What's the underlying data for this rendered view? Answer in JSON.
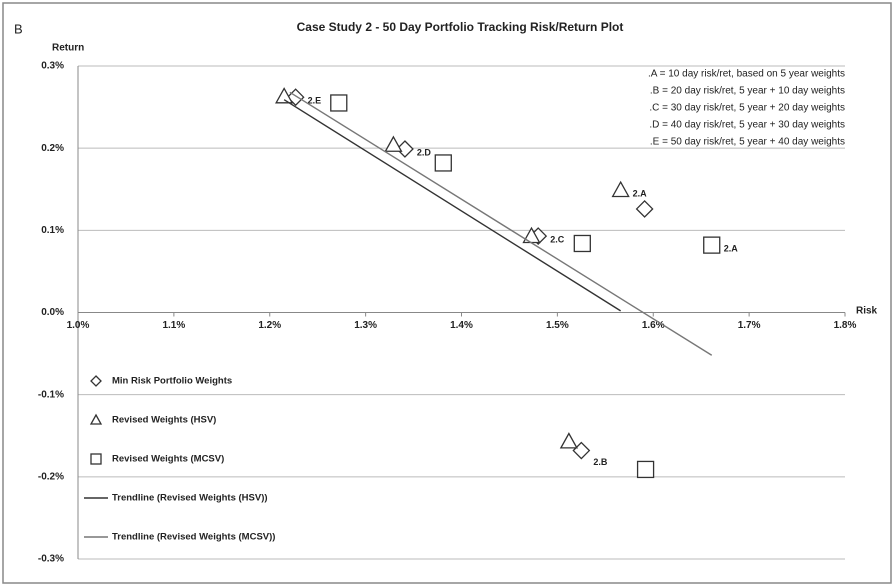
{
  "chart_data": {
    "type": "scatter",
    "panel_label": "B",
    "title": "Case Study 2 - 50 Day Portfolio Tracking  Risk/Return Plot",
    "y_label": "Return",
    "x_label": "Risk",
    "xlim": [
      1.0,
      1.8
    ],
    "ylim": [
      -0.3,
      0.3
    ],
    "xticks": [
      {
        "value": 1.0,
        "label": "1.0%"
      },
      {
        "value": 1.1,
        "label": "1.1%"
      },
      {
        "value": 1.2,
        "label": "1.2%"
      },
      {
        "value": 1.3,
        "label": "1.3%"
      },
      {
        "value": 1.4,
        "label": "1.4%"
      },
      {
        "value": 1.5,
        "label": "1.5%"
      },
      {
        "value": 1.6,
        "label": "1.6%"
      },
      {
        "value": 1.7,
        "label": "1.7%"
      },
      {
        "value": 1.8,
        "label": "1.8%"
      }
    ],
    "yticks": [
      {
        "value": -0.3,
        "label": "-0.3%"
      },
      {
        "value": -0.2,
        "label": "-0.2%"
      },
      {
        "value": -0.1,
        "label": "-0.1%"
      },
      {
        "value": 0.0,
        "label": "0.0%"
      },
      {
        "value": 0.1,
        "label": "0.1%"
      },
      {
        "value": 0.2,
        "label": "0.2%"
      },
      {
        "value": 0.3,
        "label": "0.3%"
      }
    ],
    "grid": true,
    "notes": [
      ".A = 10 day risk/ret,  based on 5 year weights",
      ".B = 20 day risk/ret, 5  year + 10 day weights",
      ".C = 30 day risk/ret, 5  year + 20 day weights",
      ".D = 40 day risk/ret, 5  year + 30 day weights",
      ".E = 50 day risk/ret, 5  year + 40 day weights"
    ],
    "series": [
      {
        "name": "Min Risk Portfolio Weights",
        "style": "diamond",
        "color": "#333333",
        "x": [
          1.227,
          1.341,
          1.48,
          1.591,
          1.525
        ],
        "values": [
          0.262,
          0.199,
          0.093,
          0.126,
          -0.168
        ],
        "point_labels": [
          "2.E",
          "2.D",
          "2.C",
          null,
          "2.B"
        ]
      },
      {
        "name": "Revised Weights (HSV)",
        "style": "triangle",
        "color": "#333333",
        "x": [
          1.215,
          1.329,
          1.473,
          1.566,
          1.512
        ],
        "values": [
          0.263,
          0.204,
          0.093,
          0.149,
          -0.157
        ],
        "point_labels": [
          null,
          null,
          null,
          "2.A",
          null
        ]
      },
      {
        "name": "Revised Weights (MCSV)",
        "style": "square",
        "color": "#333333",
        "x": [
          1.272,
          1.381,
          1.526,
          1.661,
          1.592
        ],
        "values": [
          0.255,
          0.182,
          0.084,
          0.082,
          -0.191
        ],
        "point_labels": [
          null,
          null,
          null,
          "2.A",
          null
        ]
      },
      {
        "name": "Trendline (Revised Weights (HSV))",
        "style": "line",
        "color": "#333333",
        "x": [
          1.215,
          1.566
        ],
        "values": [
          0.259,
          0.002
        ]
      },
      {
        "name": "Trendline (Revised Weights (MCSV))",
        "style": "line",
        "color": "#777777",
        "x": [
          1.221,
          1.661
        ],
        "values": [
          0.268,
          -0.052
        ]
      }
    ]
  }
}
